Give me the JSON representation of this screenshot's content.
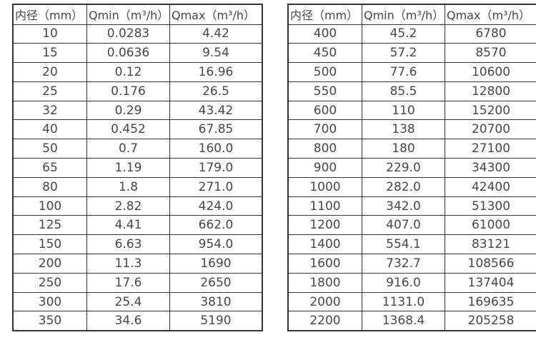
{
  "colors": {
    "background": "#ffffff",
    "border": "#333333",
    "text": "#474747"
  },
  "tables": [
    {
      "name": "flow-table-small-diameters",
      "headers": [
        "内径（mm）",
        "Qmin（m³/h）",
        "Qmax（m³/h）"
      ],
      "rows": [
        [
          "10",
          "0.0283",
          "4.42"
        ],
        [
          "15",
          "0.0636",
          "9.54"
        ],
        [
          "20",
          "0.12",
          "16.96"
        ],
        [
          "25",
          "0.176",
          "26.5"
        ],
        [
          "32",
          "0.29",
          "43.42"
        ],
        [
          "40",
          "0.452",
          "67.85"
        ],
        [
          "50",
          "0.7",
          "160.0"
        ],
        [
          "65",
          "1.19",
          "179.0"
        ],
        [
          "80",
          "1.8",
          "271.0"
        ],
        [
          "100",
          "2.82",
          "424.0"
        ],
        [
          "125",
          "4.41",
          "662.0"
        ],
        [
          "150",
          "6.63",
          "954.0"
        ],
        [
          "200",
          "11.3",
          "1690"
        ],
        [
          "250",
          "17.6",
          "2650"
        ],
        [
          "300",
          "25.4",
          "3810"
        ],
        [
          "350",
          "34.6",
          "5190"
        ]
      ]
    },
    {
      "name": "flow-table-large-diameters",
      "headers": [
        "内径（mm）",
        "Qmin（m³/h）",
        "Qmax（m³/h）"
      ],
      "rows": [
        [
          "400",
          "45.2",
          "6780"
        ],
        [
          "450",
          "57.2",
          "8570"
        ],
        [
          "500",
          "77.6",
          "10600"
        ],
        [
          "550",
          "85.5",
          "12800"
        ],
        [
          "600",
          "110",
          "15200"
        ],
        [
          "700",
          "138",
          "20700"
        ],
        [
          "800",
          "180",
          "27100"
        ],
        [
          "900",
          "229.0",
          "34300"
        ],
        [
          "1000",
          "282.0",
          "42400"
        ],
        [
          "1100",
          "342.0",
          "51300"
        ],
        [
          "1200",
          "407.0",
          "61000"
        ],
        [
          "1400",
          "554.1",
          "83121"
        ],
        [
          "1600",
          "732.7",
          "108566"
        ],
        [
          "1800",
          "916.0",
          "137404"
        ],
        [
          "2000",
          "1131.0",
          "169635"
        ],
        [
          "2200",
          "1368.4",
          "205258"
        ]
      ]
    }
  ],
  "chart_data": {
    "type": "table",
    "title": "",
    "series": [
      {
        "name": "内径（mm）",
        "values": [
          10,
          15,
          20,
          25,
          32,
          40,
          50,
          65,
          80,
          100,
          125,
          150,
          200,
          250,
          300,
          350,
          400,
          450,
          500,
          550,
          600,
          700,
          800,
          900,
          1000,
          1100,
          1200,
          1400,
          1600,
          1800,
          2000,
          2200
        ]
      },
      {
        "name": "Qmin（m³/h）",
        "values": [
          0.0283,
          0.0636,
          0.12,
          0.176,
          0.29,
          0.452,
          0.7,
          1.19,
          1.8,
          2.82,
          4.41,
          6.63,
          11.3,
          17.6,
          25.4,
          34.6,
          45.2,
          57.2,
          77.6,
          85.5,
          110,
          138,
          180,
          229.0,
          282.0,
          342.0,
          407.0,
          554.1,
          732.7,
          916.0,
          1131.0,
          1368.4
        ]
      },
      {
        "name": "Qmax（m³/h）",
        "values": [
          4.42,
          9.54,
          16.96,
          26.5,
          43.42,
          67.85,
          160.0,
          179.0,
          271.0,
          424.0,
          662.0,
          954.0,
          1690,
          2650,
          3810,
          5190,
          6780,
          8570,
          10600,
          12800,
          15200,
          20700,
          27100,
          34300,
          42400,
          51300,
          61000,
          83121,
          108566,
          137404,
          169635,
          205258
        ]
      }
    ]
  }
}
